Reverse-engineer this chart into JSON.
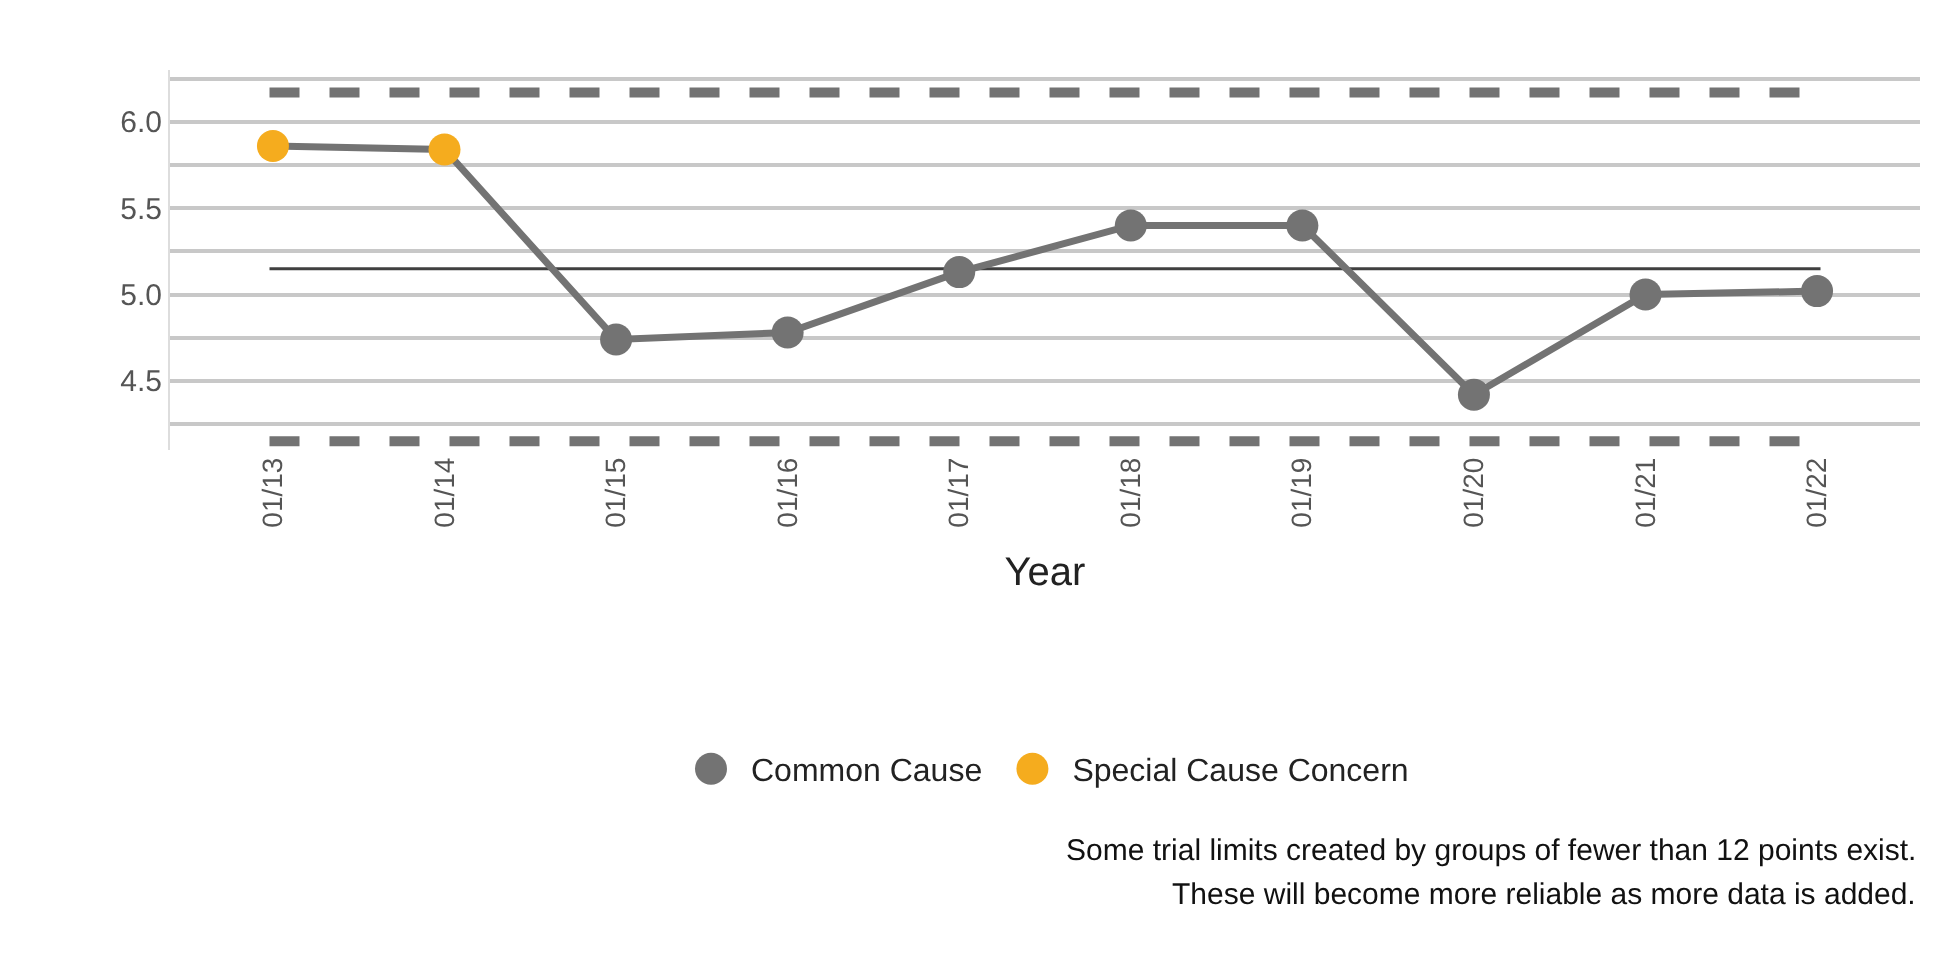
{
  "chart_data": {
    "type": "line",
    "xlabel": "Year",
    "categories": [
      "01/13",
      "01/14",
      "01/15",
      "01/16",
      "01/17",
      "01/18",
      "01/19",
      "01/20",
      "01/21",
      "01/22"
    ],
    "series": [
      {
        "color": "#737373",
        "marker": "none",
        "values": [
          5.86,
          5.84,
          4.74,
          4.78,
          5.13,
          5.4,
          5.4,
          4.42,
          5.0,
          5.02
        ]
      },
      {
        "type": "scatter",
        "name": "Common Cause",
        "color": "#737373",
        "marker": "circle",
        "values": [
          null,
          null,
          4.74,
          4.78,
          5.13,
          5.4,
          5.4,
          4.42,
          5.0,
          5.02
        ]
      },
      {
        "type": "scatter",
        "name": "Special Cause Concern",
        "color": "#f5ac1e",
        "marker": "circle",
        "values": [
          5.86,
          5.84,
          null,
          null,
          null,
          null,
          null,
          null,
          null,
          null
        ]
      }
    ],
    "ref_lines": [
      {
        "axis": "y",
        "value": 5.15,
        "color": "#404040",
        "line_style": "solid"
      },
      {
        "axis": "y",
        "value": 6.17,
        "color": "#737373",
        "line_style": "dashed"
      },
      {
        "axis": "y",
        "value": 4.15,
        "color": "#737373",
        "line_style": "dashed"
      }
    ],
    "ylim": [
      4.1,
      6.3
    ],
    "yticks": [
      {
        "value": 4.25,
        "label": null
      },
      {
        "value": 4.5,
        "label": "4.5"
      },
      {
        "value": 4.75,
        "label": null
      },
      {
        "value": 5.0,
        "label": "5.0"
      },
      {
        "value": 5.25,
        "label": null
      },
      {
        "value": 5.5,
        "label": "5.5"
      },
      {
        "value": 5.75,
        "label": null
      },
      {
        "value": 6.0,
        "label": "6.0"
      },
      {
        "value": 6.25,
        "label": null
      }
    ],
    "grid": "y",
    "legend": "bottom",
    "annotations": [
      "Some trial limits created by groups of fewer than 12 points exist.",
      "These will become more reliable as more data is added."
    ]
  }
}
